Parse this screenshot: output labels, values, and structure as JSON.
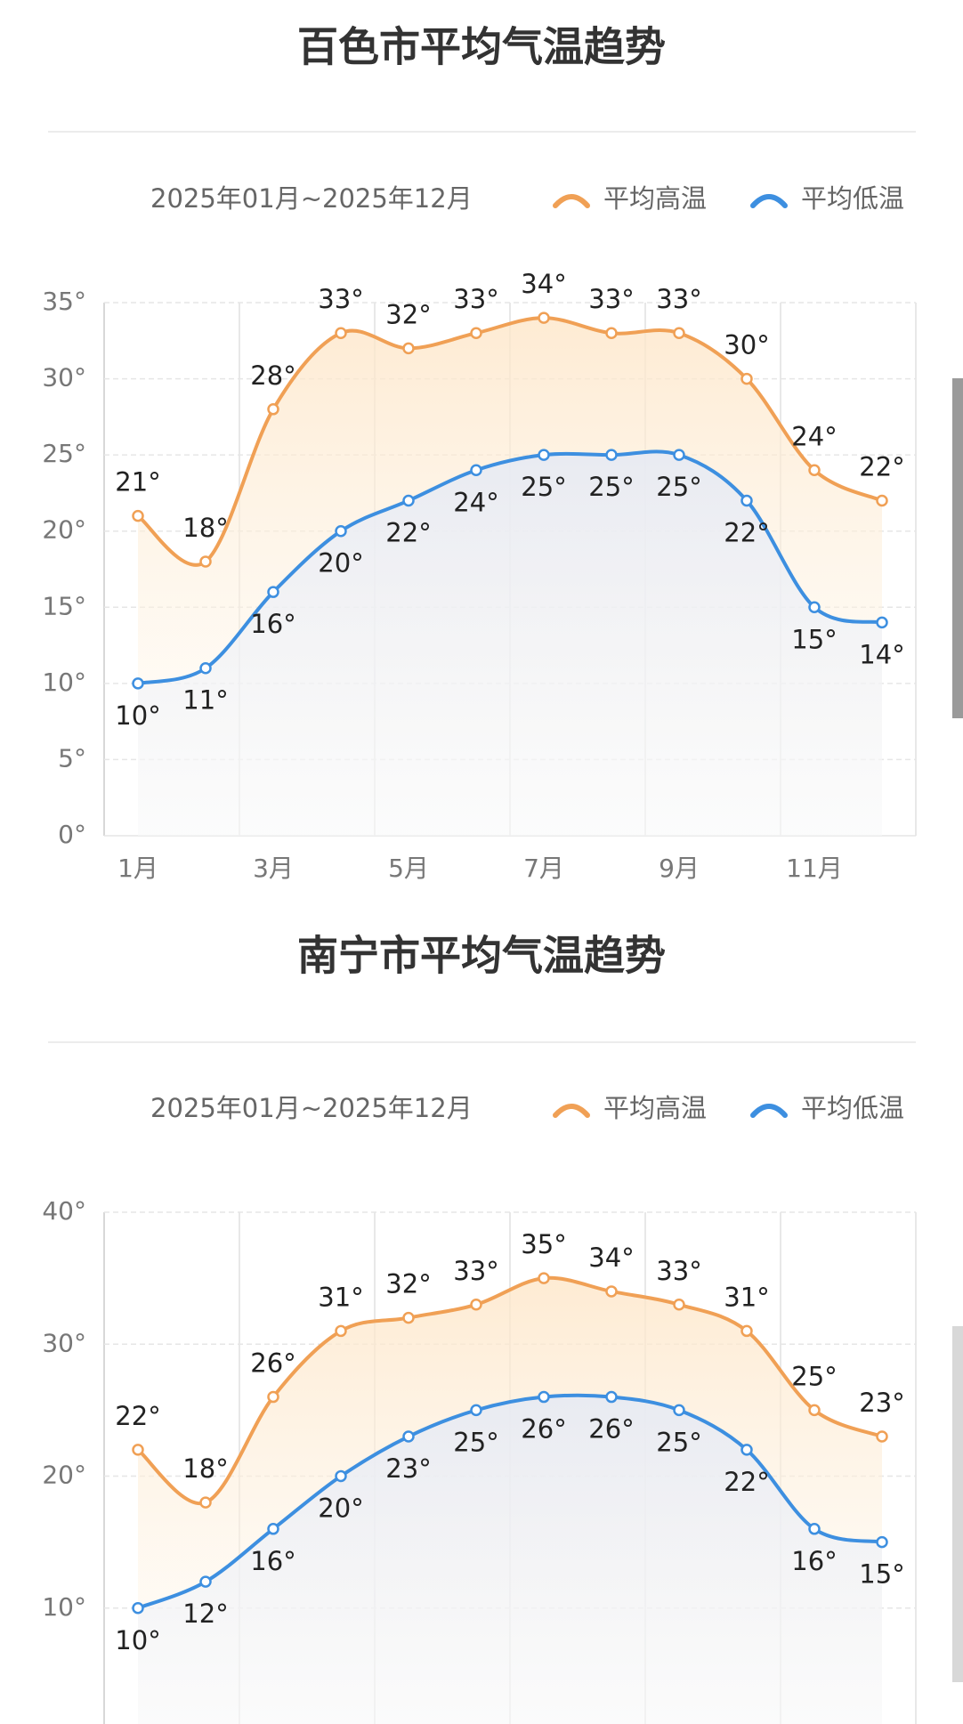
{
  "chart_data": [
    {
      "type": "line",
      "title": "百色市平均气温趋势",
      "subtitle": "2025年01月~2025年12月",
      "categories": [
        "1月",
        null,
        "3月",
        null,
        "5月",
        null,
        "7月",
        null,
        "9月",
        null,
        "11月",
        null
      ],
      "series": [
        {
          "name": "平均高温",
          "color": "#f0a055",
          "values": [
            21,
            18,
            28,
            33,
            32,
            33,
            34,
            33,
            33,
            30,
            24,
            22
          ],
          "value_labels": [
            "21°",
            "18°",
            "28°",
            "33°",
            "32°",
            "33°",
            "34°",
            "33°",
            "33°",
            "30°",
            "24°",
            "22°"
          ]
        },
        {
          "name": "平均低温",
          "color": "#3d8fe0",
          "values": [
            10,
            11,
            16,
            20,
            22,
            24,
            25,
            25,
            25,
            22,
            15,
            14
          ],
          "value_labels": [
            "10°",
            "11°",
            "16°",
            "20°",
            "22°",
            "24°",
            "25°",
            "25°",
            "25°",
            "22°",
            "15°",
            "14°"
          ]
        }
      ],
      "ylim": [
        0,
        35
      ],
      "yticks": [
        {
          "value": 0,
          "label": "0°"
        },
        {
          "value": 5,
          "label": "5°"
        },
        {
          "value": 10,
          "label": "10°"
        },
        {
          "value": 15,
          "label": "15°"
        },
        {
          "value": 20,
          "label": "20°"
        },
        {
          "value": 25,
          "label": "25°"
        },
        {
          "value": 30,
          "label": "30°"
        },
        {
          "value": 35,
          "label": "35°"
        }
      ],
      "grid": true,
      "legend": "top-right"
    },
    {
      "type": "line",
      "title": "南宁市平均气温趋势",
      "subtitle": "2025年01月~2025年12月",
      "categories": [
        null,
        null,
        null,
        null,
        null,
        null,
        null,
        null,
        null,
        null,
        null,
        null
      ],
      "series": [
        {
          "name": "平均高温",
          "color": "#f0a055",
          "values": [
            22,
            18,
            26,
            31,
            32,
            33,
            35,
            34,
            33,
            31,
            25,
            23
          ],
          "value_labels": [
            "22°",
            "18°",
            "26°",
            "31°",
            "32°",
            "33°",
            "35°",
            "34°",
            "33°",
            "31°",
            "25°",
            "23°"
          ]
        },
        {
          "name": "平均低温",
          "color": "#3d8fe0",
          "values": [
            10,
            12,
            16,
            20,
            23,
            25,
            26,
            26,
            25,
            22,
            16,
            15
          ],
          "value_labels": [
            "10°",
            "12°",
            "16°",
            "20°",
            "23°",
            "25°",
            "26°",
            "26°",
            "25°",
            "22°",
            "16°",
            "15°"
          ]
        }
      ],
      "ylim": [
        0,
        40
      ],
      "yticks": [
        {
          "value": 10,
          "label": "10°"
        },
        {
          "value": 20,
          "label": "20°"
        },
        {
          "value": 30,
          "label": "30°"
        },
        {
          "value": 40,
          "label": "40°"
        }
      ],
      "grid": true,
      "legend": "top-right"
    }
  ]
}
